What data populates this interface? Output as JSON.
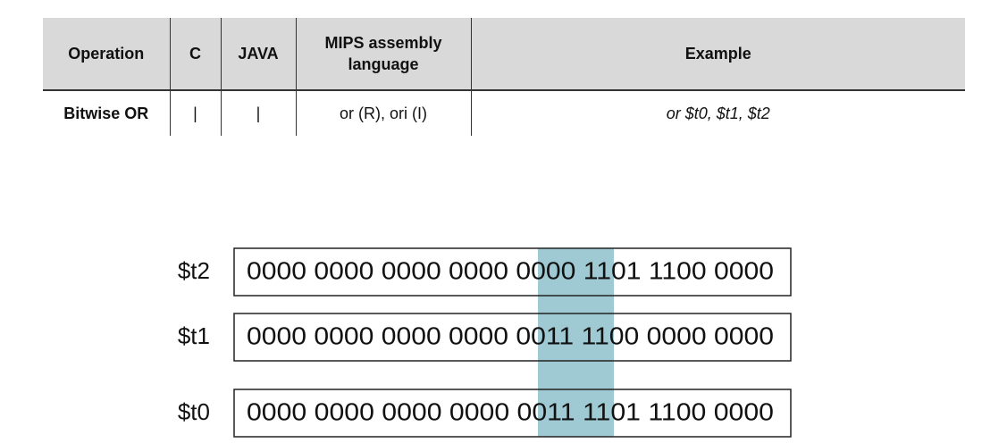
{
  "table": {
    "header": [
      "Operation",
      "C",
      "JAVA",
      "MIPS assembly language",
      "Example"
    ],
    "rows": [
      [
        "Bitwise OR",
        "|",
        "|",
        "or (R), ori (I)",
        "or $t0, $t1, $t2"
      ]
    ]
  },
  "registers": [
    {
      "name": "$t2",
      "value": "0000 0000 0000 0000 0000 1101 1100 0000"
    },
    {
      "name": "$t1",
      "value": "0000 0000 0000 0000 0011 1100 0000 0000"
    },
    {
      "name": "$t0",
      "value": "0000 0000 0000 0000 0011 1101 1100 0000"
    }
  ]
}
